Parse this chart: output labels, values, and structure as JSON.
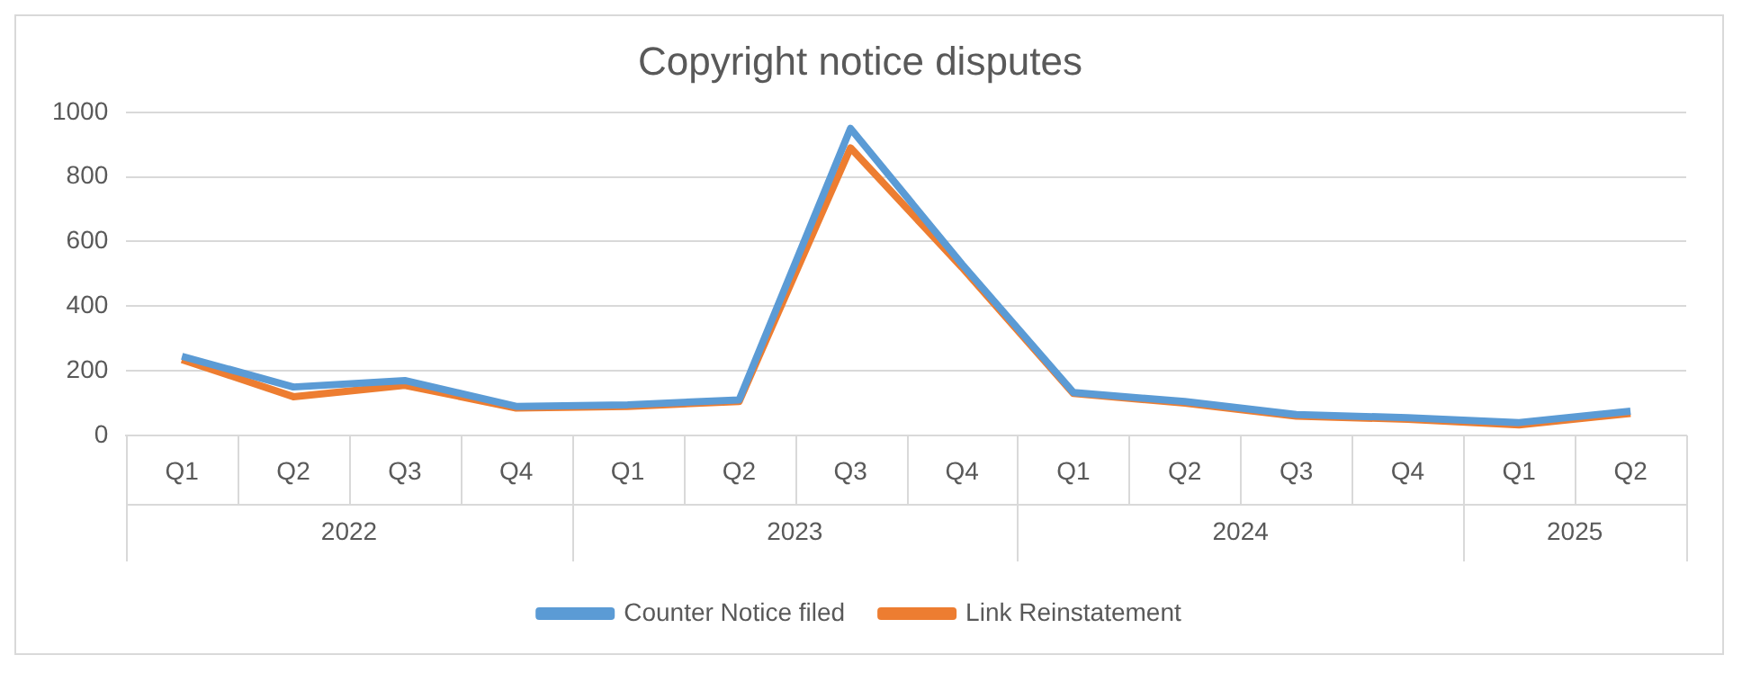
{
  "chart_data": {
    "type": "line",
    "title": "Copyright notice disputes",
    "categories": [
      "Q1",
      "Q2",
      "Q3",
      "Q4",
      "Q1",
      "Q2",
      "Q3",
      "Q4",
      "Q1",
      "Q2",
      "Q3",
      "Q4",
      "Q1",
      "Q2"
    ],
    "annotations": [
      "2022",
      "2023",
      "2024",
      "2025"
    ],
    "series": [
      {
        "name": "Counter Notice filed",
        "color": "#5b9bd5",
        "values": [
          245,
          150,
          170,
          90,
          95,
          110,
          950,
          530,
          133,
          105,
          65,
          55,
          40,
          75
        ]
      },
      {
        "name": "Link Reinstatement",
        "color": "#ed7d31",
        "values": [
          235,
          120,
          155,
          85,
          90,
          105,
          890,
          520,
          130,
          100,
          60,
          50,
          33,
          68
        ]
      }
    ],
    "ylim": [
      0,
      1000
    ],
    "yticks": [
      0,
      200,
      400,
      600,
      800,
      1000
    ],
    "grid": "y",
    "legend": "bottom",
    "marker": "none",
    "line_style": "solid"
  }
}
